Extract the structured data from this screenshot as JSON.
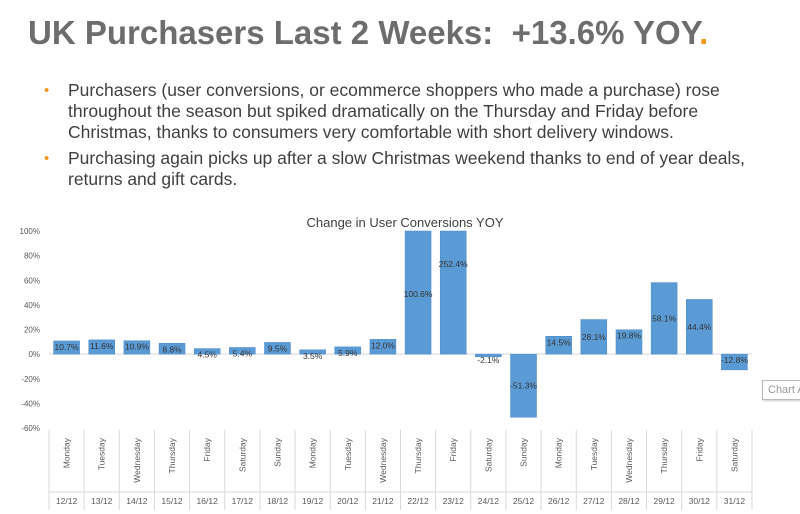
{
  "slide": {
    "title": "UK Purchasers Last 2 Weeks:  +13.6% YOY",
    "title_dot": ".",
    "bullets": [
      "Purchasers (user conversions, or ecommerce shoppers who made a purchase) rose throughout the season but spiked dramatically on the Thursday and Friday before Christmas, thanks to consumers very comfortable with short delivery windows.",
      "Purchasing again picks up after a slow Christmas weekend thanks to end of year deals, returns and gift cards."
    ],
    "accent_color": "#f39a1e",
    "tooltip": "Chart A"
  },
  "chart_data": {
    "type": "bar",
    "title": "Change in User Conversions YOY",
    "categories": [
      "Monday",
      "Tuesday",
      "Wednesday",
      "Thursday",
      "Friday",
      "Saturday",
      "Sunday",
      "Monday",
      "Tuesday",
      "Wednesday",
      "Thursday",
      "Friday",
      "Saturday",
      "Sunday",
      "Monday",
      "Tuesday",
      "Wednesday",
      "Thursday",
      "Friday",
      "Saturday"
    ],
    "dates": [
      "12/12",
      "13/12",
      "14/12",
      "15/12",
      "16/12",
      "17/12",
      "18/12",
      "19/12",
      "20/12",
      "21/12",
      "22/12",
      "23/12",
      "24/12",
      "25/12",
      "26/12",
      "27/12",
      "28/12",
      "29/12",
      "30/12",
      "31/12"
    ],
    "values": [
      10.7,
      11.6,
      10.9,
      8.8,
      4.5,
      5.4,
      9.5,
      3.5,
      5.9,
      12.0,
      100.6,
      252.4,
      -2.1,
      -51.3,
      14.5,
      28.1,
      19.8,
      58.1,
      44.4,
      -12.8
    ],
    "data_labels": [
      "10.7%",
      "11.6%",
      "10.9%",
      "8.8%",
      "4.5%",
      "5.4%",
      "9.5%",
      "3.5%",
      "5.9%",
      "12.0%",
      "100.6%",
      "252.4%",
      "-2.1%",
      "-51.3%",
      "14.5%",
      "28.1%",
      "19.8%",
      "58.1%",
      "44.4%",
      "-12.8%"
    ],
    "yticks": [
      "100%",
      "80%",
      "60%",
      "40%",
      "20%",
      "0%",
      "-20%",
      "-40%",
      "-60%"
    ],
    "ylim": [
      -60,
      100
    ],
    "bar_color": "#5b9bd5",
    "grid": false,
    "legend": "none"
  }
}
